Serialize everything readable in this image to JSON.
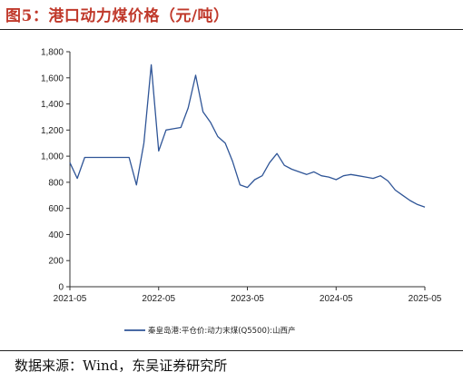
{
  "figure": {
    "title": "图5：港口动力煤价格（元/吨）",
    "source": "数据来源：Wind，东吴证券研究所"
  },
  "colors": {
    "series": "#2f5597",
    "axis": "#333333",
    "title": "#c0392b"
  },
  "chart_data": {
    "type": "line",
    "title": "",
    "xlabel": "",
    "ylabel": "",
    "ylim": [
      0,
      1800
    ],
    "yticks": [
      0,
      200,
      400,
      600,
      800,
      1000,
      1200,
      1400,
      1600,
      1800
    ],
    "ytick_labels": [
      "0",
      "200",
      "400",
      "600",
      "800",
      "1,000",
      "1,200",
      "1,400",
      "1,600",
      "1,800"
    ],
    "xlim": [
      "2021-05",
      "2025-05"
    ],
    "xticks": [
      "2021-05",
      "2022-05",
      "2023-05",
      "2024-05",
      "2025-05"
    ],
    "grid": false,
    "legend_position": "bottom",
    "series": [
      {
        "name": "秦皇岛港:平仓价:动力末煤(Q5500):山西产",
        "x": [
          "2021-05",
          "2021-06",
          "2021-07",
          "2021-08",
          "2021-09",
          "2021-10",
          "2021-11",
          "2021-12",
          "2022-01",
          "2022-02",
          "2022-03",
          "2022-04",
          "2022-05",
          "2022-06",
          "2022-07",
          "2022-08",
          "2022-09",
          "2022-10",
          "2022-11",
          "2022-12",
          "2023-01",
          "2023-02",
          "2023-03",
          "2023-04",
          "2023-05",
          "2023-06",
          "2023-07",
          "2023-08",
          "2023-09",
          "2023-10",
          "2023-11",
          "2023-12",
          "2024-01",
          "2024-02",
          "2024-03",
          "2024-04",
          "2024-05",
          "2024-06",
          "2024-07",
          "2024-08",
          "2024-09",
          "2024-10",
          "2024-11",
          "2024-12",
          "2025-01",
          "2025-02",
          "2025-03",
          "2025-04",
          "2025-05"
        ],
        "values": [
          950,
          830,
          990,
          990,
          990,
          990,
          990,
          990,
          990,
          780,
          1100,
          1700,
          1040,
          1200,
          1210,
          1220,
          1370,
          1620,
          1340,
          1260,
          1150,
          1100,
          960,
          780,
          760,
          820,
          850,
          950,
          1020,
          930,
          900,
          880,
          860,
          880,
          850,
          840,
          820,
          850,
          860,
          850,
          840,
          830,
          850,
          810,
          740,
          700,
          660,
          630,
          610
        ]
      }
    ]
  }
}
